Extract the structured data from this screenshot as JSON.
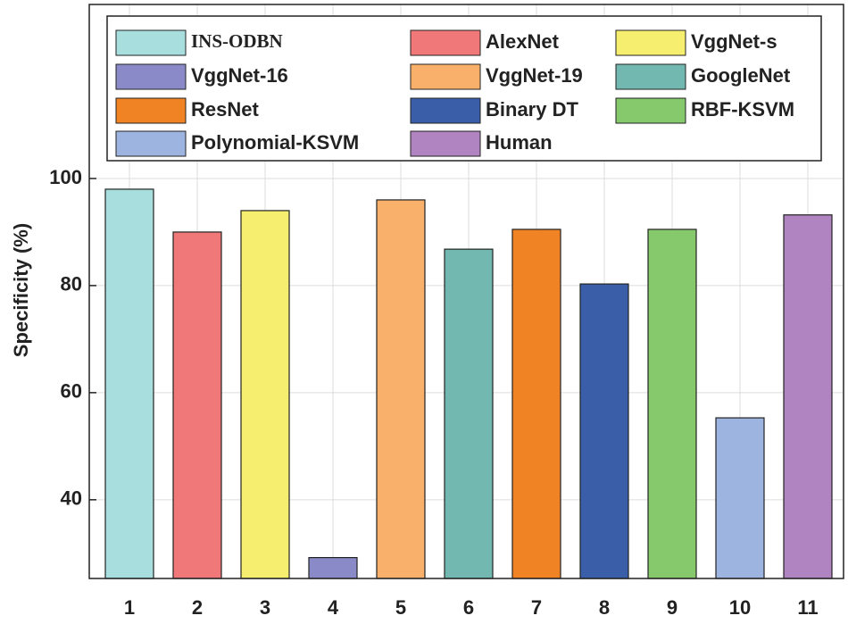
{
  "chart_data": {
    "type": "bar",
    "y_label": "Specificity (%)",
    "categories": [
      "1",
      "2",
      "3",
      "4",
      "5",
      "6",
      "7",
      "8",
      "9",
      "10",
      "11"
    ],
    "values": [
      98,
      90,
      94,
      29.2,
      96,
      86.8,
      90.5,
      80.3,
      90.5,
      55.3,
      93.2
    ],
    "names": [
      "INS-ODBN",
      "AlexNet",
      "VggNet-s",
      "VggNet-16",
      "VggNet-19",
      "GoogleNet",
      "ResNet",
      "Binary DT",
      "RBF-KSVM",
      "Polynomial-KSVM",
      "Human"
    ],
    "colors": [
      "#a8dede",
      "#f07878",
      "#f5ee6e",
      "#8a8ac8",
      "#f8b06a",
      "#72b8b0",
      "#f08424",
      "#3a5fa8",
      "#86c86c",
      "#9eb4e0",
      "#b084c0"
    ],
    "ylim": [
      25.3,
      132.5
    ],
    "yticks": [
      40,
      60,
      80,
      100
    ],
    "grid": true,
    "legend": "top"
  }
}
